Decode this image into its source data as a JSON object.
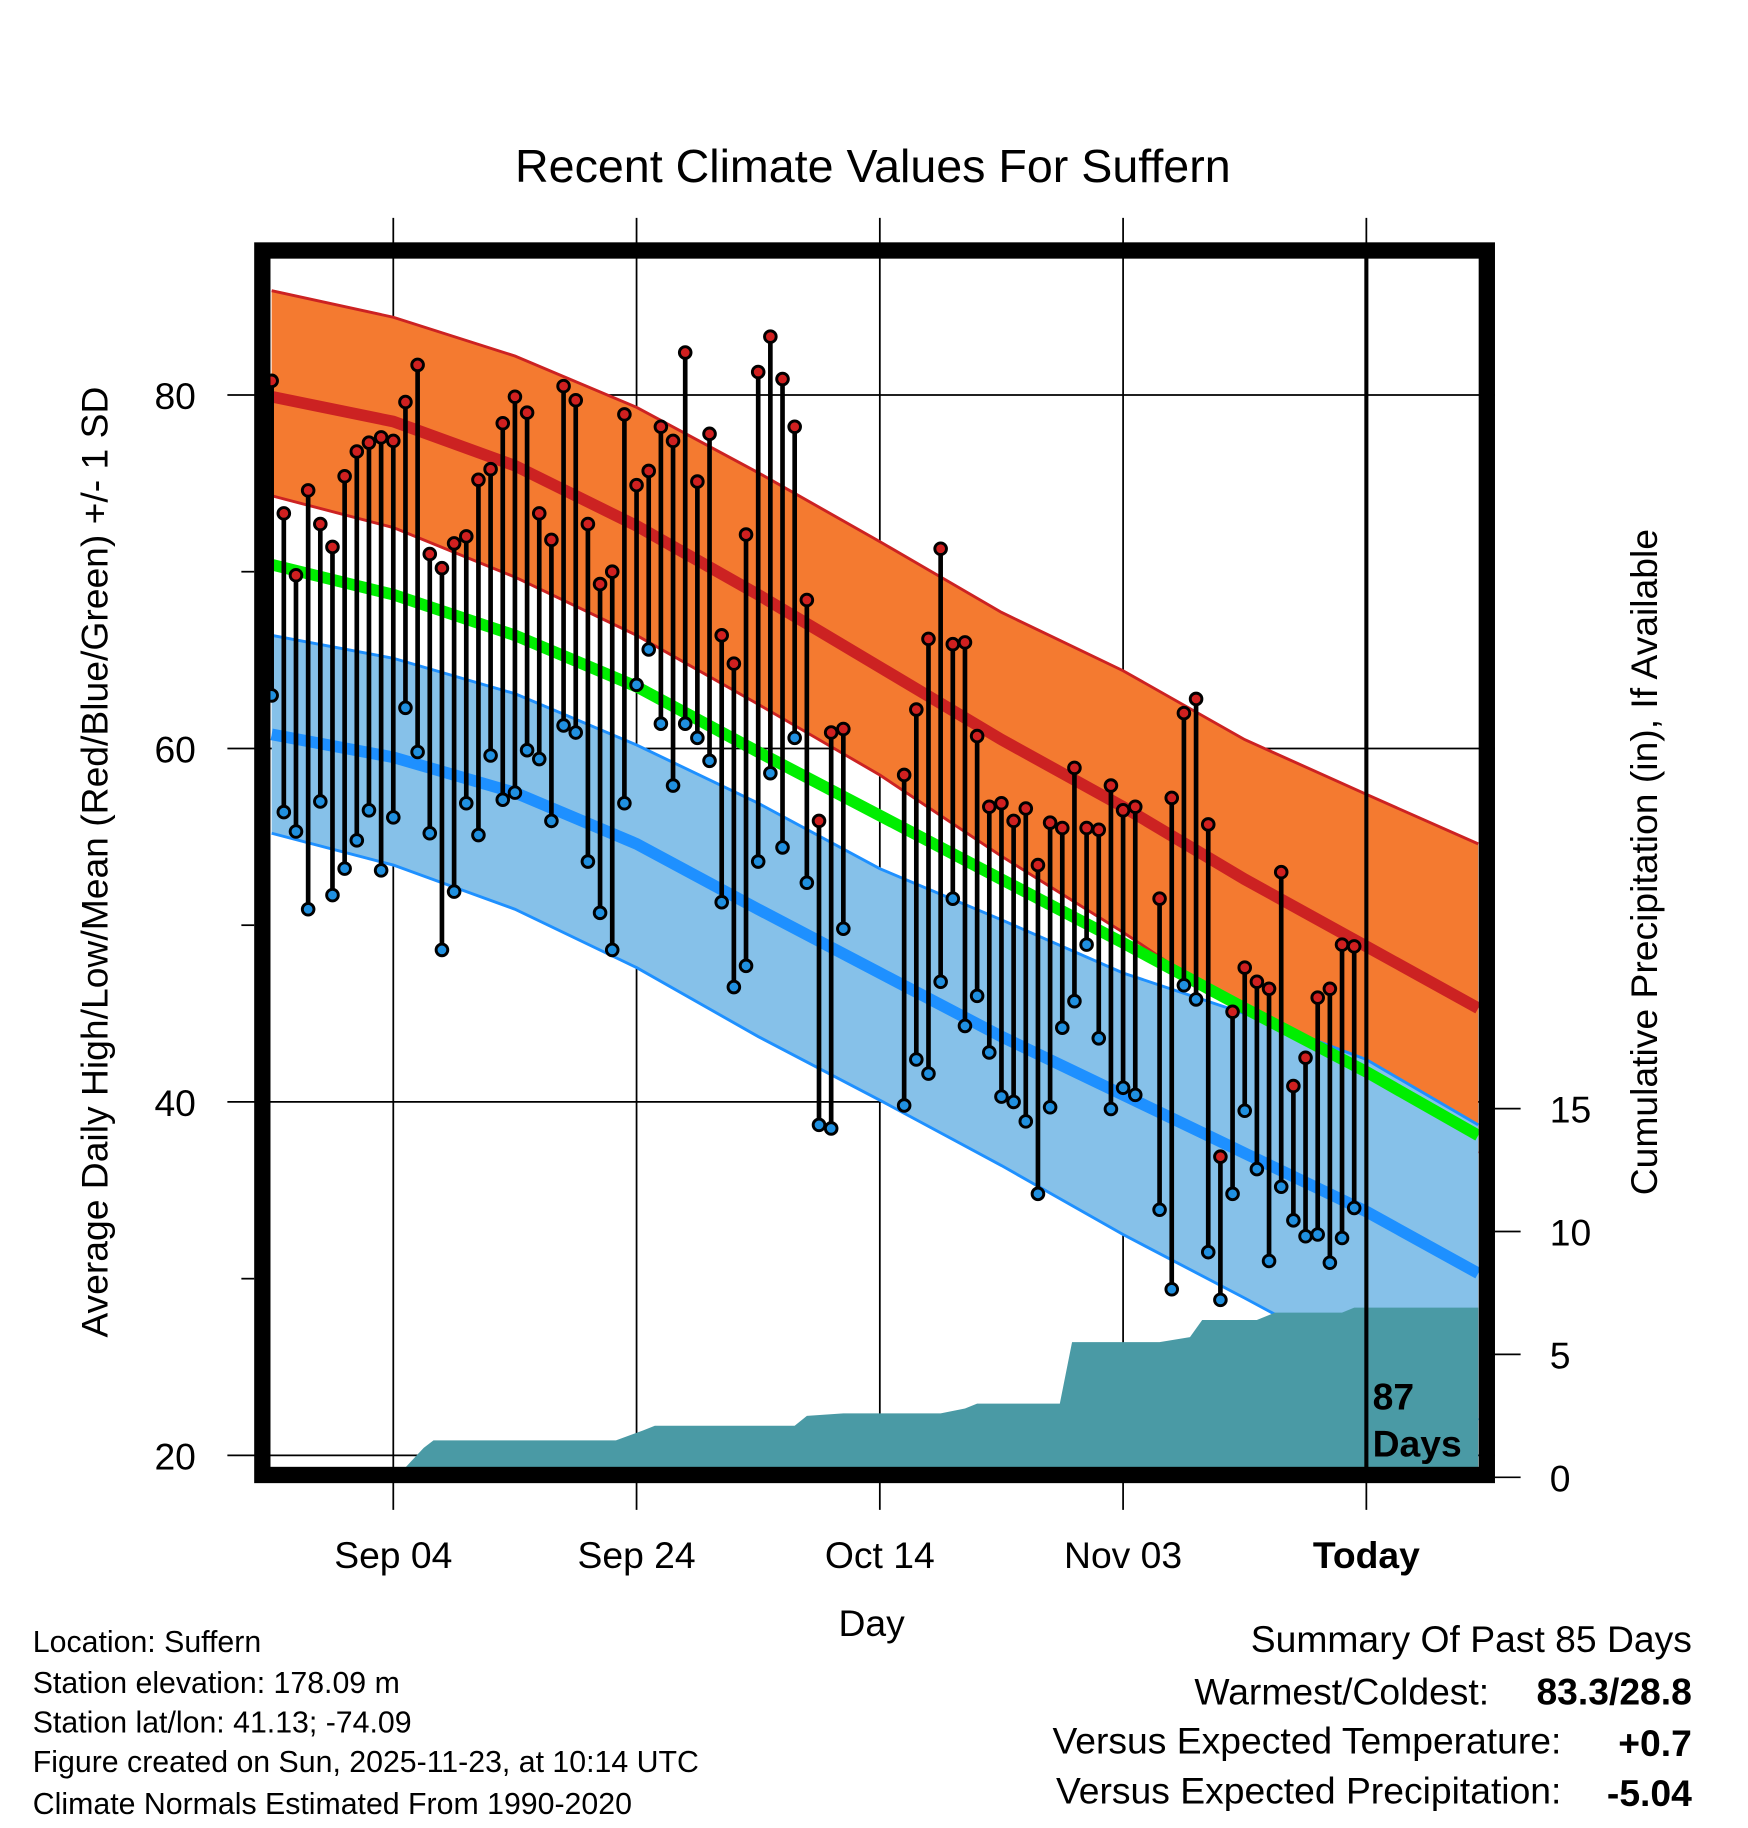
{
  "chart_data": {
    "type": "line",
    "title": "Recent Climate Values For Suffern",
    "xlabel": "Day",
    "ylabel": "Average Daily High/Low/Mean (Red/Blue/Green) +/- 1 SD",
    "y2label": "Cumulative Precipitation (in), If Available",
    "x_unit": "day index from Aug 25 (Today = 90)",
    "xlim": [
      0,
      99.2
    ],
    "ylim": [
      19.4,
      88.4
    ],
    "y_ticks": [
      80,
      60,
      40,
      20
    ],
    "y_minor_ticks": [
      70,
      50,
      30
    ],
    "y2lim": [
      0,
      15
    ],
    "y2_ticks": [
      15,
      10,
      5,
      0
    ],
    "x_ticks": [
      {
        "day": 10,
        "label": "Sep 04"
      },
      {
        "day": 30,
        "label": "Sep 24"
      },
      {
        "day": 50,
        "label": "Oct 14"
      },
      {
        "day": 70,
        "label": "Nov 03"
      },
      {
        "day": 90,
        "label": "Today"
      }
    ],
    "grid": true,
    "today_day": 90,
    "today_annotation": [
      "87",
      "Days"
    ],
    "normals": {
      "days": [
        0,
        10,
        20,
        30,
        40,
        50,
        60,
        70,
        80,
        90,
        99.2
      ],
      "high_plus_sd": [
        85.9,
        84.4,
        82.2,
        79.3,
        75.6,
        71.7,
        67.7,
        64.4,
        60.5,
        57.4,
        54.6
      ],
      "high": [
        79.9,
        78.5,
        76.0,
        72.6,
        68.7,
        64.6,
        60.5,
        56.7,
        52.6,
        48.8,
        45.3
      ],
      "high_minus_sd": [
        74.3,
        72.5,
        69.7,
        66.4,
        62.5,
        58.5,
        53.9,
        49.6,
        45.0,
        40.4,
        37.1
      ],
      "mean": [
        70.4,
        68.7,
        66.4,
        63.5,
        59.8,
        56.2,
        52.6,
        49.0,
        45.3,
        41.7,
        38.1
      ],
      "low_plus_sd": [
        66.4,
        65.1,
        63.1,
        60.2,
        56.9,
        53.2,
        50.3,
        47.3,
        45.0,
        42.4,
        38.7
      ],
      "low": [
        60.8,
        59.5,
        57.5,
        54.6,
        50.9,
        47.3,
        43.7,
        40.4,
        37.1,
        33.8,
        30.3
      ],
      "low_minus_sd": [
        55.2,
        53.4,
        50.9,
        47.6,
        43.7,
        40.1,
        36.4,
        32.5,
        28.9,
        25.2,
        22.0
      ]
    },
    "series": [
      {
        "name": "Daily High",
        "color": "#d02020",
        "values": [
          80.8,
          73.3,
          69.8,
          74.6,
          72.7,
          71.4,
          75.4,
          76.8,
          77.3,
          77.6,
          77.4,
          79.6,
          81.7,
          71.0,
          70.2,
          71.6,
          72.0,
          75.2,
          75.8,
          78.4,
          79.9,
          79.0,
          73.3,
          71.8,
          80.5,
          79.7,
          72.7,
          69.3,
          70.0,
          78.9,
          74.9,
          75.7,
          78.2,
          77.4,
          82.4,
          75.1,
          77.8,
          66.4,
          64.8,
          72.1,
          81.3,
          83.3,
          80.9,
          78.2,
          68.4,
          55.9,
          60.9,
          61.1,
          null,
          null,
          null,
          null,
          58.5,
          62.2,
          66.2,
          71.3,
          65.9,
          66.0,
          60.7,
          56.7,
          56.9,
          55.9,
          56.6,
          53.4,
          55.8,
          55.5,
          58.9,
          55.5,
          55.4,
          57.9,
          56.5,
          56.7,
          null,
          51.5,
          57.2,
          62.0,
          62.8,
          55.7,
          36.9,
          45.1,
          47.6,
          46.8,
          46.4,
          53.0,
          40.9,
          42.5,
          45.9,
          46.4,
          48.9,
          48.8
        ]
      },
      {
        "name": "Daily Low",
        "color": "#2090e0",
        "values": [
          63.0,
          56.4,
          55.3,
          50.9,
          57.0,
          51.7,
          53.2,
          54.8,
          56.5,
          53.1,
          56.1,
          62.3,
          59.8,
          55.2,
          48.6,
          51.9,
          56.9,
          55.1,
          59.6,
          57.1,
          57.5,
          59.9,
          59.4,
          55.9,
          61.3,
          60.9,
          53.6,
          50.7,
          48.6,
          56.9,
          63.6,
          65.6,
          61.4,
          57.9,
          61.4,
          60.6,
          59.3,
          51.3,
          46.5,
          47.7,
          53.6,
          58.6,
          54.4,
          60.6,
          52.4,
          38.7,
          38.5,
          49.8,
          null,
          null,
          null,
          null,
          39.8,
          42.4,
          41.6,
          46.8,
          51.5,
          44.3,
          46.0,
          42.8,
          40.3,
          40.0,
          38.9,
          34.8,
          39.7,
          44.2,
          45.7,
          48.9,
          43.6,
          39.6,
          40.8,
          40.4,
          null,
          33.9,
          29.4,
          46.6,
          45.8,
          31.5,
          28.8,
          34.8,
          39.5,
          36.2,
          31.0,
          35.2,
          33.3,
          32.4,
          32.5,
          30.9,
          32.3,
          34.0
        ]
      }
    ],
    "precip": {
      "days": [
        0,
        10,
        11,
        12.5,
        13.3,
        28.3,
        30.5,
        31.5,
        43,
        44,
        47,
        55,
        57,
        58,
        64.8,
        65.8,
        73,
        75.5,
        76.5,
        81,
        82.5,
        88,
        89,
        99.2
      ],
      "inches": [
        0,
        0,
        0.4,
        1.2,
        1.5,
        1.5,
        1.9,
        2.1,
        2.1,
        2.5,
        2.6,
        2.6,
        2.8,
        3.0,
        3.0,
        5.5,
        5.5,
        5.7,
        6.4,
        6.4,
        6.7,
        6.7,
        6.9,
        6.9
      ]
    },
    "colors": {
      "high_band": "#f47a30",
      "high_line": "#cc2222",
      "mean_line": "#00ee00",
      "low_band": "#86c1e9",
      "low_line": "#1e90ff",
      "precip": "#4a9aa5"
    }
  },
  "info": {
    "lines": [
      "Location: Suffern",
      "Station elevation: 178.09 m",
      "Station lat/lon: 41.13; -74.09",
      "Figure created on Sun, 2025-11-23, at 10:14 UTC",
      "Climate Normals Estimated From 1990-2020"
    ]
  },
  "summary": {
    "title": "Summary Of Past 85 Days",
    "warmest_coldest_label": "Warmest/Coldest:",
    "warmest_coldest_value": "83.3/28.8",
    "temp_label": "Versus Expected Temperature:",
    "temp_value": "+0.7",
    "temp_color": "#d42a2a",
    "precip_label": "Versus Expected Precipitation:",
    "precip_value": "-5.04",
    "precip_color": "#a0522d"
  }
}
